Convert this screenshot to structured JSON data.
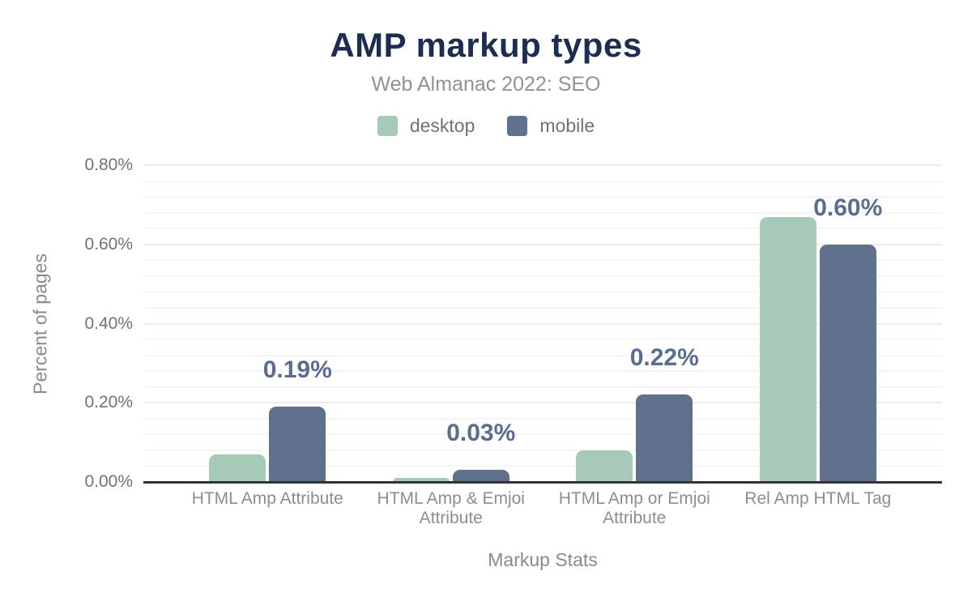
{
  "chart_data": {
    "type": "bar",
    "title": "AMP markup types",
    "subtitle": "Web Almanac 2022: SEO",
    "xlabel": "Markup Stats",
    "ylabel": "Percent of pages",
    "categories": [
      "HTML Amp Attribute",
      "HTML Amp & Emjoi Attribute",
      "HTML Amp or Emjoi Attribute",
      "Rel Amp HTML Tag"
    ],
    "series": [
      {
        "name": "desktop",
        "color": "#a7c9b8",
        "values": [
          0.07,
          0.01,
          0.08,
          0.67
        ]
      },
      {
        "name": "mobile",
        "color": "#5f718c",
        "values": [
          0.19,
          0.03,
          0.22,
          0.6
        ]
      }
    ],
    "data_labels": {
      "series": "mobile",
      "labels": [
        "0.19%",
        "0.03%",
        "0.22%",
        "0.60%"
      ]
    },
    "y_ticks": [
      "0.00%",
      "0.20%",
      "0.40%",
      "0.60%",
      "0.80%"
    ],
    "ylim": [
      0,
      0.8
    ],
    "y_major_step": 0.2,
    "y_minor_step": 0.04,
    "legend_position": "top",
    "grid": true
  },
  "colors": {
    "title": "#1d2d52",
    "subtitle": "#8e9297",
    "tick_text": "#6f7276",
    "category_text": "#8a8e94",
    "data_label": "#5a6d8e",
    "axis_line": "#333333",
    "grid_major": "#ececec",
    "grid_minor": "#f5f5f5",
    "background": "#ffffff"
  }
}
